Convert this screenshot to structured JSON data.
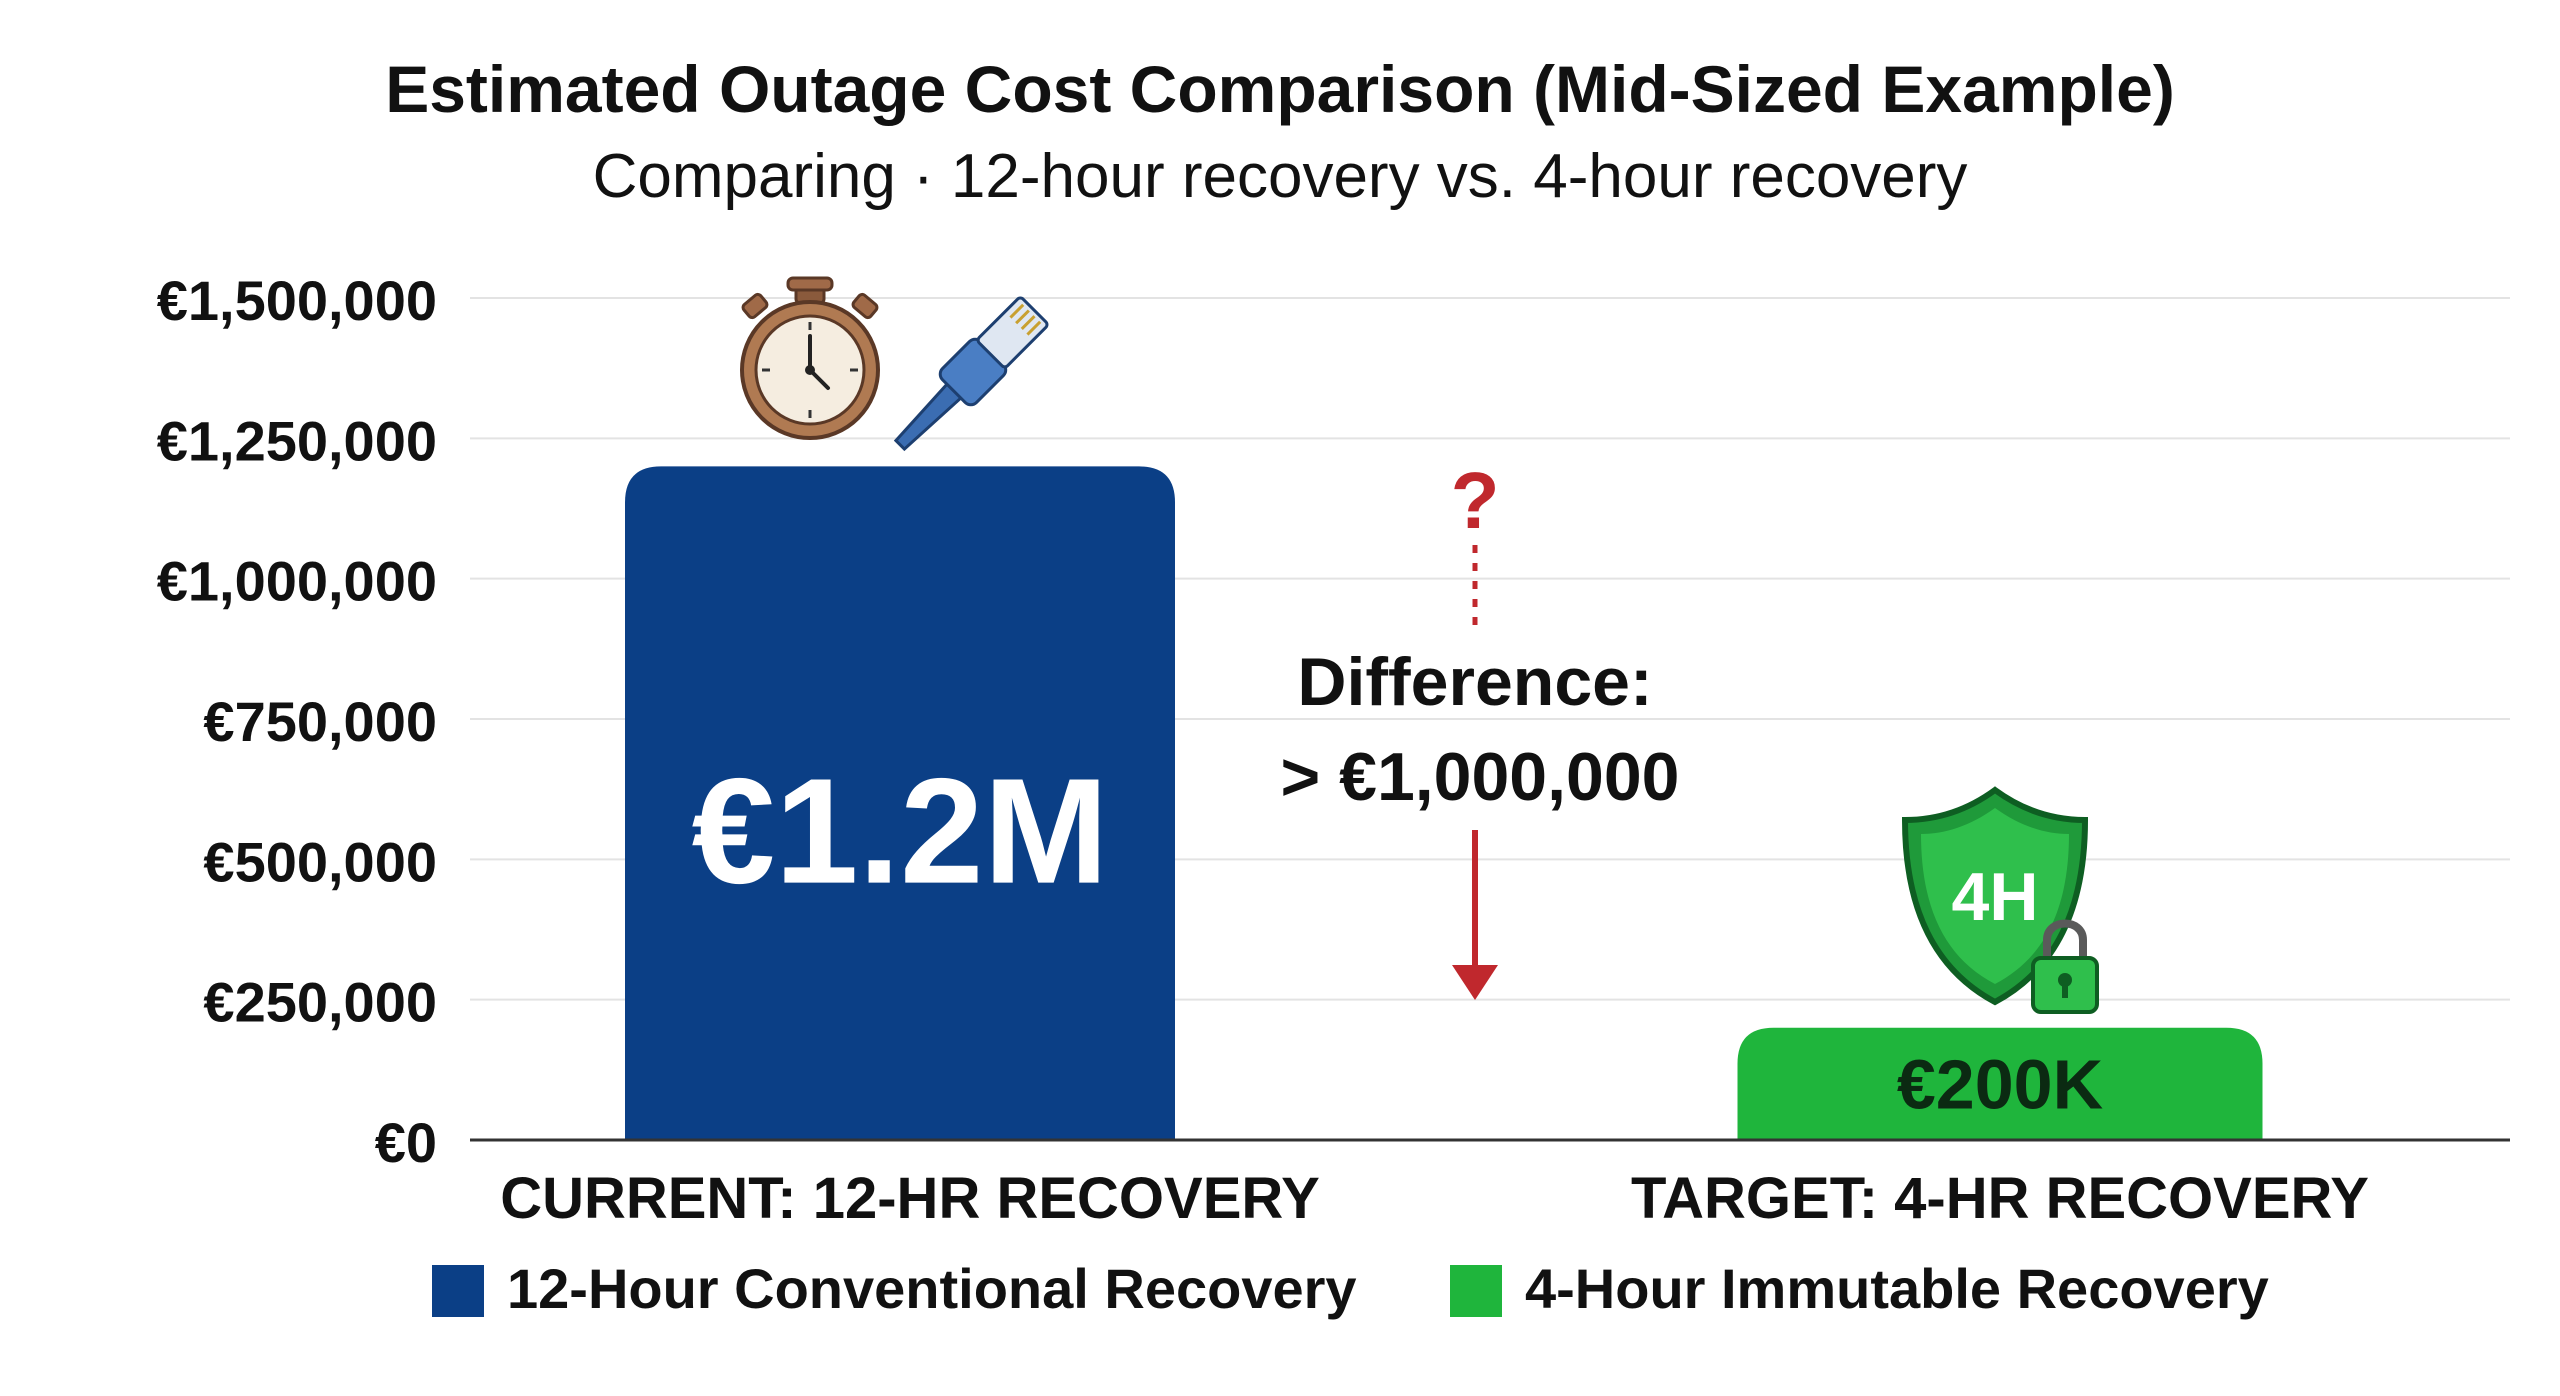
{
  "chart_data": {
    "type": "bar",
    "title": "Estimated Outage Cost Comparison (Mid-Sized Example)",
    "subtitle": "Comparing · 12-hour recovery vs. 4-hour recovery",
    "ylim": [
      0,
      1500000
    ],
    "y_tick_labels": [
      "€0",
      "€250,000",
      "€500,000",
      "€750,000",
      "€1,000,000",
      "€1,250,000",
      "€1,500,000"
    ],
    "y_tick_values": [
      0,
      250000,
      500000,
      750000,
      1000000,
      1250000,
      1500000
    ],
    "categories": [
      "CURRENT: 12-HR RECOVERY",
      "TARGET: 4-HR RECOVERY"
    ],
    "values": [
      1200000,
      200000
    ],
    "data_labels": [
      "€1.2M",
      "€200K"
    ],
    "legend": [
      {
        "label": "12-Hour Conventional Recovery",
        "color": "#0b3f86"
      },
      {
        "label": "4-Hour Immutable Recovery",
        "color": "#1fb53c"
      }
    ],
    "legend_placement": "bottom",
    "grid": true,
    "annotation": {
      "line1": "Difference:",
      "line2": "> €1,000,000",
      "question_mark": "?",
      "color": "#c0282d"
    },
    "icons": [
      "stopwatch-icon",
      "ethernet-cable-icon",
      "shield-4h-icon",
      "padlock-icon"
    ],
    "shield_text": "4H"
  }
}
